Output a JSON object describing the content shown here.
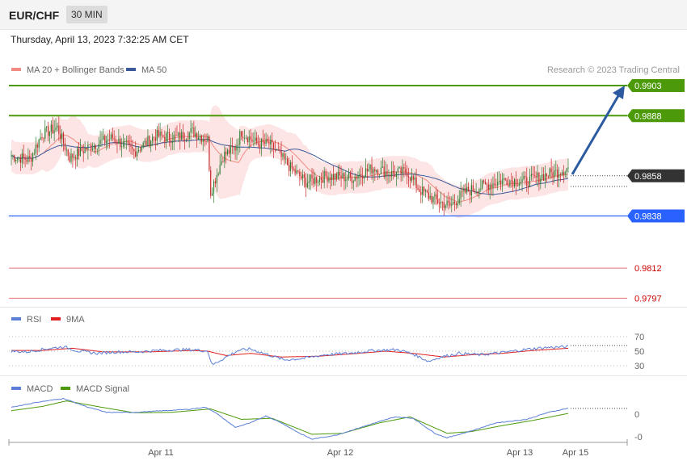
{
  "header": {
    "symbol": "EUR/CHF",
    "timeframe": "30 MIN",
    "datetime": "Thursday, April 13, 2023 7:32:25 AM CET"
  },
  "colors": {
    "ma20": "#f28b82",
    "ma50": "#3b5a99",
    "band": "#fde0e0",
    "resistance": "#4c9a0a",
    "support_blue": "#2962ff",
    "support_red": "#e57373",
    "support_red_text": "#cc0000",
    "current": "#333333",
    "candle_up": "#2e7d32",
    "candle_down": "#c62828",
    "arrow": "#2c5aa0",
    "rsi": "#5b7fd6",
    "rsi_ma": "#e02020",
    "macd": "#5b7fd6",
    "macd_signal": "#4c9a0a"
  },
  "chart_data": [
    {
      "type": "candlestick",
      "legend": [
        "MA 20 + Bollinger Bands",
        "MA 50"
      ],
      "annotation": "Research © 2023 Trading Central",
      "x_labels": [
        "Apr 11",
        "Apr 12",
        "Apr 13",
        "Apr 15"
      ],
      "ylim": [
        0.979,
        0.9908
      ],
      "current_price": "0.9858",
      "levels": [
        {
          "value": 0.9903,
          "label": "0.9903",
          "kind": "resistance"
        },
        {
          "value": 0.9888,
          "label": "0.9888",
          "kind": "resistance"
        },
        {
          "value": 0.9858,
          "label": "0.9858",
          "kind": "current"
        },
        {
          "value": 0.9838,
          "label": "0.9838",
          "kind": "pivot"
        },
        {
          "value": 0.9812,
          "label": "0.9812",
          "kind": "support"
        },
        {
          "value": 0.9797,
          "label": "0.9797",
          "kind": "support"
        }
      ],
      "anchors": [
        [
          0,
          0.9868
        ],
        [
          12,
          0.9866
        ],
        [
          20,
          0.9879
        ],
        [
          30,
          0.9882
        ],
        [
          38,
          0.9867
        ],
        [
          52,
          0.9873
        ],
        [
          66,
          0.9877
        ],
        [
          80,
          0.987
        ],
        [
          94,
          0.9878
        ],
        [
          108,
          0.9877
        ],
        [
          118,
          0.988
        ],
        [
          128,
          0.9876
        ],
        [
          130,
          0.985
        ],
        [
          138,
          0.9868
        ],
        [
          146,
          0.9872
        ],
        [
          150,
          0.988
        ],
        [
          160,
          0.9874
        ],
        [
          168,
          0.9874
        ],
        [
          182,
          0.9862
        ],
        [
          192,
          0.9855
        ],
        [
          206,
          0.9858
        ],
        [
          222,
          0.9857
        ],
        [
          236,
          0.9862
        ],
        [
          248,
          0.9859
        ],
        [
          258,
          0.986
        ],
        [
          266,
          0.9851
        ],
        [
          276,
          0.9846
        ],
        [
          286,
          0.9843
        ],
        [
          296,
          0.985
        ],
        [
          308,
          0.9853
        ],
        [
          322,
          0.9856
        ],
        [
          336,
          0.9855
        ],
        [
          346,
          0.9858
        ],
        [
          356,
          0.986
        ],
        [
          363,
          0.9862
        ]
      ]
    },
    {
      "type": "line",
      "legend": [
        "RSI",
        "9MA"
      ],
      "y_ticks": [
        70,
        50,
        30
      ],
      "ylim": [
        25,
        80
      ],
      "rsi_anchors": [
        [
          0,
          50
        ],
        [
          10,
          49
        ],
        [
          22,
          53
        ],
        [
          34,
          56
        ],
        [
          44,
          50
        ],
        [
          56,
          47
        ],
        [
          68,
          49
        ],
        [
          82,
          49
        ],
        [
          96,
          51
        ],
        [
          110,
          52
        ],
        [
          120,
          52
        ],
        [
          128,
          50
        ],
        [
          131,
          31
        ],
        [
          140,
          42
        ],
        [
          148,
          51
        ],
        [
          156,
          53
        ],
        [
          166,
          46
        ],
        [
          178,
          38
        ],
        [
          190,
          40
        ],
        [
          204,
          45
        ],
        [
          220,
          47
        ],
        [
          236,
          51
        ],
        [
          252,
          52
        ],
        [
          262,
          46
        ],
        [
          272,
          36
        ],
        [
          280,
          42
        ],
        [
          292,
          47
        ],
        [
          306,
          45
        ],
        [
          320,
          48
        ],
        [
          334,
          52
        ],
        [
          348,
          55
        ],
        [
          363,
          56
        ]
      ],
      "ma_anchors": [
        [
          0,
          51
        ],
        [
          20,
          51
        ],
        [
          40,
          54
        ],
        [
          60,
          49
        ],
        [
          90,
          49
        ],
        [
          118,
          51
        ],
        [
          128,
          50
        ],
        [
          140,
          44
        ],
        [
          156,
          47
        ],
        [
          176,
          42
        ],
        [
          200,
          43
        ],
        [
          220,
          46
        ],
        [
          244,
          50
        ],
        [
          262,
          47
        ],
        [
          282,
          42
        ],
        [
          300,
          45
        ],
        [
          320,
          47
        ],
        [
          340,
          51
        ],
        [
          363,
          54
        ]
      ]
    },
    {
      "type": "line",
      "legend": [
        "MACD",
        "MACD Signal"
      ],
      "y_ticks": [
        "0",
        "-0"
      ],
      "macd_anchors": [
        [
          0,
          0.2
        ],
        [
          18,
          0.35
        ],
        [
          34,
          0.45
        ],
        [
          50,
          0.2
        ],
        [
          62,
          0.05
        ],
        [
          80,
          0.05
        ],
        [
          100,
          0.1
        ],
        [
          116,
          0.14
        ],
        [
          126,
          0.2
        ],
        [
          132,
          0.08
        ],
        [
          146,
          -0.38
        ],
        [
          156,
          -0.25
        ],
        [
          166,
          -0.05
        ],
        [
          176,
          -0.25
        ],
        [
          188,
          -0.55
        ],
        [
          196,
          -0.72
        ],
        [
          212,
          -0.6
        ],
        [
          230,
          -0.35
        ],
        [
          250,
          -0.08
        ],
        [
          262,
          -0.12
        ],
        [
          276,
          -0.55
        ],
        [
          284,
          -0.68
        ],
        [
          300,
          -0.48
        ],
        [
          316,
          -0.25
        ],
        [
          336,
          -0.15
        ],
        [
          350,
          0.05
        ],
        [
          363,
          0.17
        ]
      ],
      "signal_anchors": [
        [
          0,
          0.1
        ],
        [
          20,
          0.22
        ],
        [
          36,
          0.38
        ],
        [
          56,
          0.22
        ],
        [
          80,
          0.04
        ],
        [
          104,
          0.05
        ],
        [
          130,
          0.15
        ],
        [
          150,
          -0.15
        ],
        [
          170,
          -0.12
        ],
        [
          196,
          -0.58
        ],
        [
          216,
          -0.55
        ],
        [
          240,
          -0.25
        ],
        [
          260,
          -0.08
        ],
        [
          284,
          -0.55
        ],
        [
          300,
          -0.5
        ],
        [
          320,
          -0.33
        ],
        [
          340,
          -0.18
        ],
        [
          363,
          0.02
        ]
      ]
    }
  ]
}
